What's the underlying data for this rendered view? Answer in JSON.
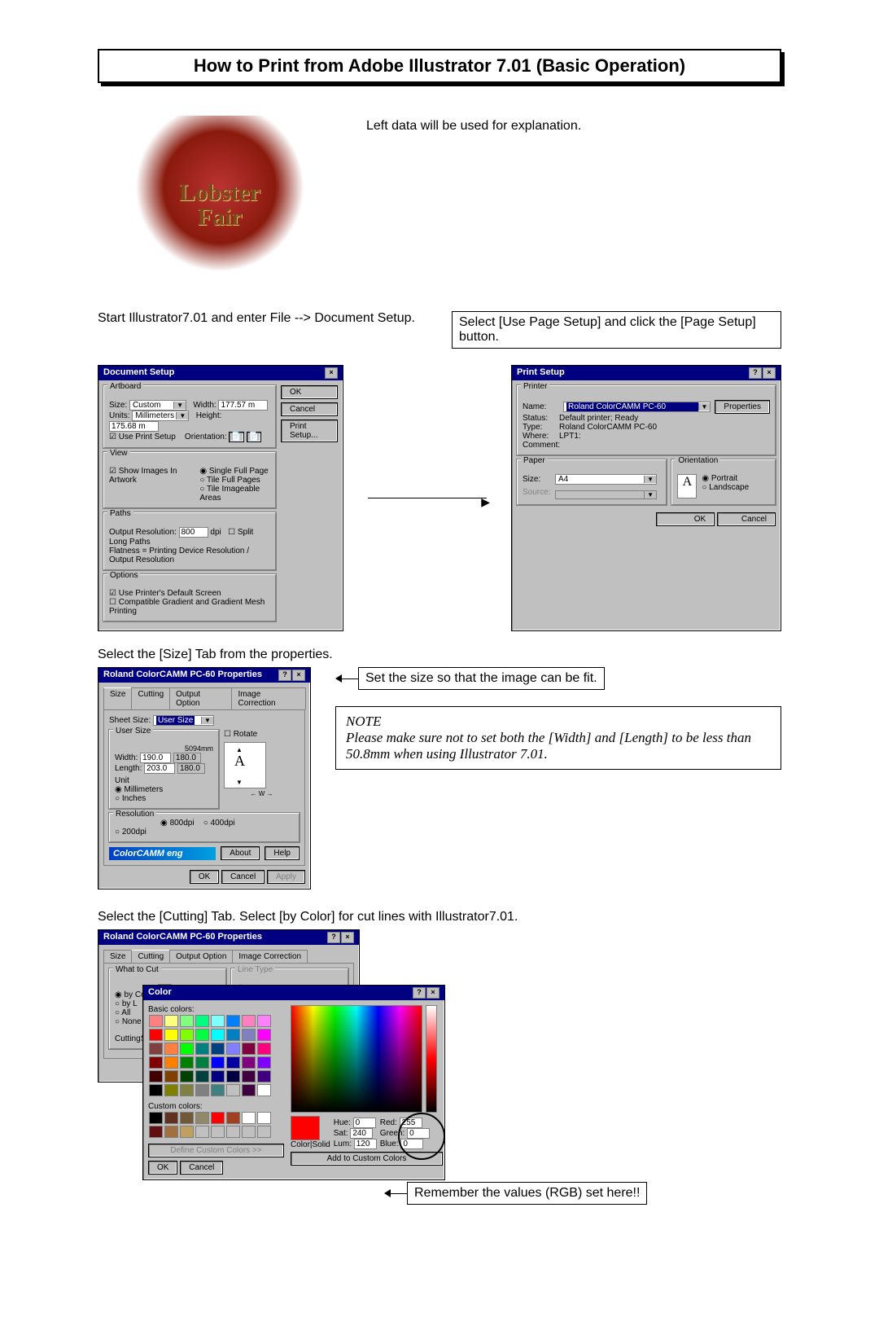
{
  "title": "How to Print from Adobe Illustrator 7.01  (Basic Operation)",
  "intro_text": "Left data will be used for explanation.",
  "lobster_line1": "Lobster",
  "lobster_line2": "Fair",
  "step1_text": "Start Illustrator7.01 and enter File --> Document Setup.",
  "step1_right": "Select [Use Page Setup] and click the [Page Setup] button.",
  "doc_setup": {
    "title": "Document Setup",
    "artboard_label": "Artboard",
    "size_label": "Size:",
    "size_value": "Custom",
    "width_label": "Width:",
    "width_value": "177.57 m",
    "height_label": "Height:",
    "height_value": "175.68 m",
    "units_label": "Units:",
    "units_value": "Millimeters",
    "use_print": "Use Print Setup",
    "orient_label": "Orientation:",
    "view_label": "View",
    "show_images": "Show Images In Artwork",
    "single": "Single Full Page",
    "tile_full": "Tile Full Pages",
    "tile_img": "Tile Imageable Areas",
    "paths_label": "Paths",
    "outres_label": "Output Resolution:",
    "outres_val": "800",
    "dpi": "dpi",
    "split": "Split Long Paths",
    "flatness": "Flatness = Printing Device Resolution / Output Resolution",
    "options_label": "Options",
    "use_default": "Use Printer's Default Screen",
    "compatible": "Compatible Gradient and Gradient Mesh Printing",
    "ok": "OK",
    "cancel": "Cancel",
    "print_setup": "Print Setup..."
  },
  "print_setup": {
    "title": "Print Setup",
    "printer_label": "Printer",
    "name_label": "Name:",
    "name_value": "Roland ColorCAMM PC-60",
    "properties": "Properties",
    "status_label": "Status:",
    "status_value": "Default printer; Ready",
    "type_label": "Type:",
    "type_value": "Roland ColorCAMM PC-60",
    "where_label": "Where:",
    "where_value": "LPT1:",
    "comment_label": "Comment:",
    "paper_label": "Paper",
    "size_label": "Size:",
    "size_value": "A4",
    "source_label": "Source:",
    "orient_label": "Orientation",
    "portrait": "Portrait",
    "landscape": "Landscape",
    "ok": "OK",
    "cancel": "Cancel"
  },
  "step2_text": "Select the [Size] Tab from the properties.",
  "size_dlg": {
    "title": "Roland ColorCAMM PC-60 Properties",
    "tab_size": "Size",
    "tab_cutting": "Cutting",
    "tab_output": "Output Option",
    "tab_image": "Image Correction",
    "sheet_size_label": "Sheet Size:",
    "sheet_size_value": "User Size",
    "user_size_label": "User Size",
    "rotate": "Rotate",
    "width_label": "Width:",
    "width_val": "190.0",
    "width_spin": "180.0",
    "length_label": "Length:",
    "length_val": "203.0",
    "length_spin": "180.0",
    "unit_label": "Unit",
    "mm": "Millimeters",
    "inches": "Inches",
    "res_label": "Resolution",
    "r800": "800dpi",
    "r400": "400dpi",
    "r200": "200dpi",
    "sdmm": "5094mm",
    "brand": "ColorCAMM eng",
    "about": "About",
    "help": "Help",
    "ok": "OK",
    "cancel": "Cancel",
    "apply": "Apply"
  },
  "set_size_text": "Set the size so that the image can be fit.",
  "note_hd": "NOTE",
  "note_body": "Please make sure not to set both the [Width] and [Length] to be less than 50.8mm when using Illustrator 7.01.",
  "step3_text": "Select the [Cutting] Tab.  Select [by Color] for cut lines with Illustrator7.01.",
  "cutting_dlg": {
    "title": "Roland ColorCAMM PC-60 Properties",
    "what_label": "What to Cut",
    "by_color": "by Color",
    "by_layer": "by L",
    "all": "All",
    "none": "None",
    "line_type": "Line Type",
    "cutting_set": "CuttingSe",
    "color_title": "Color",
    "basic": "Basic colors:",
    "custom": "Custom colors:",
    "define": "Define Custom Colors >>",
    "ok": "OK",
    "cancel": "Cancel",
    "hue": "Hue:",
    "hue_v": "0",
    "sat": "Sat:",
    "sat_v": "240",
    "lum": "Lum:",
    "lum_v": "120",
    "red": "Red:",
    "red_v": "255",
    "green": "Green:",
    "green_v": "0",
    "blue": "Blue:",
    "blue_v": "0",
    "colorsolid": "Color|Solid",
    "add": "Add to Custom Colors"
  },
  "remember_text": "Remember the values (RGB) set here!!",
  "basic_colors": [
    "#ff8080",
    "#ffff80",
    "#80ff80",
    "#00ff80",
    "#80ffff",
    "#0080ff",
    "#ff80c0",
    "#ff80ff",
    "#ff0000",
    "#ffff00",
    "#80ff00",
    "#00ff40",
    "#00ffff",
    "#0080c0",
    "#8080c0",
    "#ff00ff",
    "#804040",
    "#ff8040",
    "#00ff00",
    "#008080",
    "#004080",
    "#8080ff",
    "#800040",
    "#ff0080",
    "#800000",
    "#ff8000",
    "#008000",
    "#008040",
    "#0000ff",
    "#0000a0",
    "#800080",
    "#8000ff",
    "#400000",
    "#804000",
    "#004000",
    "#004040",
    "#000080",
    "#000040",
    "#400040",
    "#400080",
    "#000000",
    "#808000",
    "#808040",
    "#808080",
    "#408080",
    "#c0c0c0",
    "#400040",
    "#ffffff"
  ],
  "custom_colors": [
    "#000000",
    "#603020",
    "#705838",
    "#908868",
    "#ff0000",
    "#a04020",
    "#ffffff",
    "#ffffff",
    "#601010",
    "#a07040",
    "#c0a060",
    "#c0c0c0",
    "#c0c0c0",
    "#c0c0c0",
    "#c0c0c0",
    "#c0c0c0"
  ]
}
